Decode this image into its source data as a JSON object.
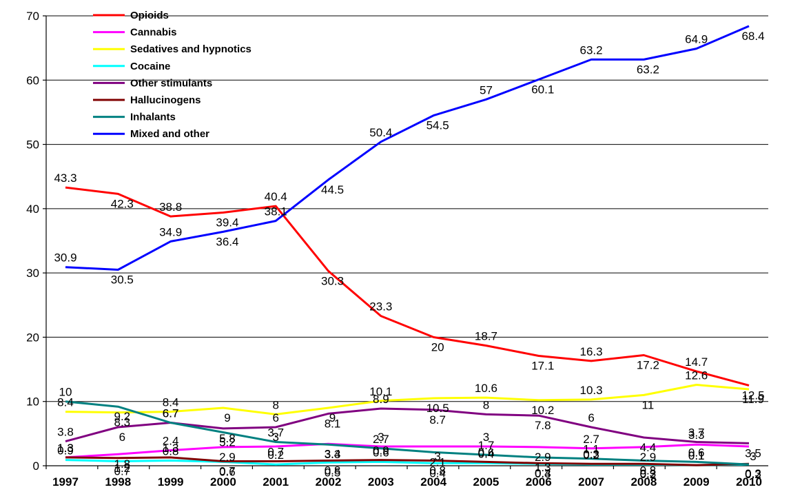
{
  "chart_data": {
    "type": "line",
    "title": "",
    "xlabel": "",
    "ylabel": "",
    "ylim": [
      0,
      70
    ],
    "yticks": [
      0,
      10,
      20,
      30,
      40,
      50,
      60,
      70
    ],
    "grid": true,
    "legend_position": "top-left",
    "categories": [
      "1997",
      "1998",
      "1999",
      "2000",
      "2001",
      "2002",
      "2003",
      "2004",
      "2005",
      "2006",
      "2007",
      "2008",
      "2009",
      "2010"
    ],
    "series": [
      {
        "name": "Opioids",
        "color": "#ff0000",
        "values": [
          43.3,
          42.3,
          38.8,
          39.4,
          40.4,
          30.3,
          23.3,
          20,
          18.7,
          17.1,
          16.3,
          17.2,
          14.7,
          12.5
        ]
      },
      {
        "name": "Cannabis",
        "color": "#ff00ff",
        "values": [
          1.3,
          1.8,
          2.4,
          2.9,
          3,
          3.4,
          3,
          3,
          3,
          2.9,
          2.7,
          2.9,
          3.3,
          3
        ]
      },
      {
        "name": "Sedatives and hypnotics",
        "color": "#ffff00",
        "values": [
          8.4,
          8.3,
          8.4,
          9,
          8,
          9,
          10.1,
          10.5,
          10.6,
          10.2,
          10.3,
          11,
          12.6,
          11.9
        ]
      },
      {
        "name": "Cocaine",
        "color": "#00ffff",
        "values": [
          0.9,
          0.7,
          0.8,
          0.6,
          0.2,
          0.5,
          0.6,
          0.4,
          0.4,
          0.3,
          0.2,
          0.2,
          0.1,
          0.2
        ]
      },
      {
        "name": "Other stimulants",
        "color": "#800080",
        "values": [
          3.8,
          6,
          6.7,
          5.8,
          6,
          8.1,
          8.9,
          8.7,
          8,
          7.8,
          6,
          4.4,
          3.7,
          3.5
        ]
      },
      {
        "name": "Hallucinogens",
        "color": "#800000",
        "values": [
          1.3,
          1.2,
          1.3,
          0.7,
          0.7,
          0.8,
          0.9,
          0.8,
          0.6,
          0.4,
          0.3,
          0.3,
          0.1,
          0.3
        ]
      },
      {
        "name": "Inhalants",
        "color": "#008080",
        "values": [
          10,
          9.2,
          6.7,
          5.2,
          3.7,
          3.3,
          2.7,
          2.1,
          1.7,
          1.3,
          1.1,
          0.8,
          0.6,
          0.2
        ]
      },
      {
        "name": "Mixed and other",
        "color": "#0000ff",
        "values": [
          30.9,
          30.5,
          34.9,
          36.4,
          38.1,
          44.5,
          50.4,
          54.5,
          57,
          60.1,
          63.2,
          63.2,
          64.9,
          68.4
        ]
      }
    ]
  }
}
